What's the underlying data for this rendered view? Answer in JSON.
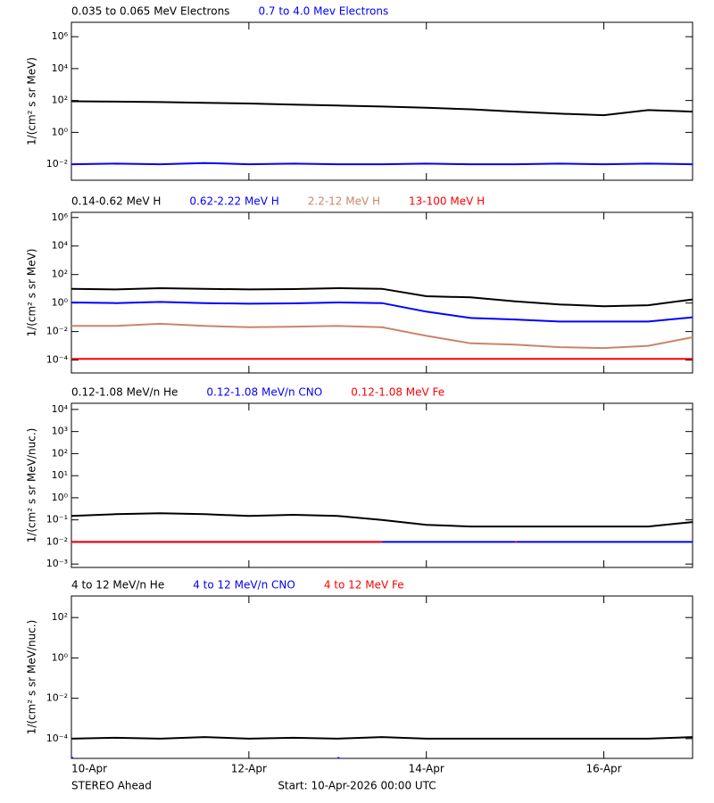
{
  "chart_data": [
    {
      "type": "line",
      "ylabel": "1/(cm² s sr MeV)",
      "ylog": true,
      "x": [
        0,
        0.5,
        1,
        1.5,
        2,
        2.5,
        3,
        3.5,
        4,
        4.5,
        5,
        5.5,
        6,
        6.5,
        7
      ],
      "xlim": [
        0,
        7
      ],
      "xticks": [
        0,
        2,
        4,
        6
      ],
      "ylim": [
        0.001,
        8000000
      ],
      "yticks": [
        {
          "value": 0.01,
          "label": "10⁻²"
        },
        {
          "value": 1,
          "label": "10⁰"
        },
        {
          "value": 100,
          "label": "10²"
        },
        {
          "value": 10000,
          "label": "10⁴"
        },
        {
          "value": 1000000,
          "label": "10⁶"
        }
      ],
      "series": [
        {
          "name": "0.035 to 0.065 MeV Electrons",
          "color": "#000000",
          "values": [
            90,
            85,
            80,
            72,
            65,
            55,
            48,
            42,
            35,
            28,
            20,
            15,
            12,
            25,
            20
          ]
        },
        {
          "name": "0.7 to 4.0 Mev Electrons",
          "color": "#0000ff",
          "values": [
            0.01,
            0.011,
            0.01,
            0.012,
            0.01,
            0.011,
            0.01,
            0.01,
            0.011,
            0.01,
            0.01,
            0.011,
            0.01,
            0.011,
            0.01
          ]
        }
      ]
    },
    {
      "type": "line",
      "ylabel": "1/(cm² s sr MeV)",
      "ylog": true,
      "x": [
        0,
        0.5,
        1,
        1.5,
        2,
        2.5,
        3,
        3.5,
        4,
        4.5,
        5,
        5.5,
        6,
        6.5,
        7
      ],
      "xlim": [
        0,
        7
      ],
      "xticks": [
        0,
        2,
        4,
        6
      ],
      "ylim": [
        1.25e-05,
        2300000
      ],
      "yticks": [
        {
          "value": 0.0001,
          "label": "10⁻⁴"
        },
        {
          "value": 0.01,
          "label": "10⁻²"
        },
        {
          "value": 1,
          "label": "10⁰"
        },
        {
          "value": 100,
          "label": "10²"
        },
        {
          "value": 10000,
          "label": "10⁴"
        },
        {
          "value": 1000000,
          "label": "10⁶"
        }
      ],
      "series": [
        {
          "name": "0.14-0.62 MeV H",
          "color": "#000000",
          "values": [
            10,
            9,
            11,
            10,
            9,
            9.5,
            11,
            10,
            3,
            2.5,
            1.3,
            0.8,
            0.6,
            0.7,
            1.8
          ]
        },
        {
          "name": "0.62-2.22 MeV H",
          "color": "#0000ff",
          "values": [
            1.1,
            1,
            1.2,
            1,
            0.9,
            0.95,
            1.1,
            1,
            0.25,
            0.09,
            0.07,
            0.05,
            0.05,
            0.05,
            0.1
          ]
        },
        {
          "name": "2.2-12 MeV H",
          "color": "#c8866a",
          "values": [
            0.025,
            0.025,
            0.035,
            0.025,
            0.02,
            0.022,
            0.025,
            0.02,
            0.005,
            0.0015,
            0.0012,
            0.0008,
            0.0007,
            0.001,
            0.004
          ]
        },
        {
          "name": "13-100 MeV H",
          "color": "#ff0000",
          "values": [
            0.00012,
            0.00012,
            0.00012,
            0.00012,
            0.00012,
            0.00012,
            0.00012,
            0.00012,
            0.00012,
            0.00012,
            0.00012,
            0.00012,
            0.00012,
            0.00012,
            0.00012
          ]
        }
      ]
    },
    {
      "type": "line",
      "ylabel": "1/(cm² s sr MeV/nuc.)",
      "ylog": true,
      "x": [
        0,
        0.5,
        1,
        1.5,
        2,
        2.5,
        3,
        3.5,
        4,
        4.5,
        5,
        5.5,
        6,
        6.5,
        7
      ],
      "xlim": [
        0,
        7
      ],
      "xticks": [
        0,
        2,
        4,
        6
      ],
      "ylim": [
        0.0007,
        19000
      ],
      "yticks": [
        {
          "value": 0.001,
          "label": "10⁻³"
        },
        {
          "value": 0.01,
          "label": "10⁻²"
        },
        {
          "value": 0.1,
          "label": "10⁻¹"
        },
        {
          "value": 1,
          "label": "10⁰"
        },
        {
          "value": 10,
          "label": "10¹"
        },
        {
          "value": 100,
          "label": "10²"
        },
        {
          "value": 1000,
          "label": "10³"
        },
        {
          "value": 10000,
          "label": "10⁴"
        }
      ],
      "series": [
        {
          "name": "0.12-1.08 MeV/n He",
          "color": "#000000",
          "values": [
            0.15,
            0.18,
            0.2,
            0.18,
            0.15,
            0.17,
            0.15,
            0.1,
            0.06,
            0.05,
            0.05,
            0.05,
            0.05,
            0.05,
            0.08
          ]
        },
        {
          "name": "0.12-1.08 MeV/n CNO",
          "color": "#0000ff",
          "values": [
            0.01,
            0.01,
            0.01,
            0.01,
            0.01,
            0.01,
            0.01,
            0.01,
            0.01,
            0.01,
            0.01,
            0.01,
            0.01,
            0.01,
            0.01
          ]
        },
        {
          "name": "0.12-1.08 MeV Fe",
          "color": "#ff0000",
          "values": [
            0.01,
            0.01,
            0.01,
            0.01,
            0.01,
            0.01,
            0.01,
            0.01,
            null,
            null,
            0.01,
            null,
            null,
            null,
            null
          ]
        }
      ]
    },
    {
      "type": "line",
      "ylabel": "1/(cm² s sr MeV/nuc.)",
      "ylog": true,
      "x": [
        0,
        0.5,
        1,
        1.5,
        2,
        2.5,
        3,
        3.5,
        4,
        4.5,
        5,
        5.5,
        6,
        6.5,
        7
      ],
      "xlim": [
        0,
        7
      ],
      "xticks": [
        {
          "value": 0,
          "label": "10-Apr"
        },
        {
          "value": 2,
          "label": "12-Apr"
        },
        {
          "value": 4,
          "label": "14-Apr"
        },
        {
          "value": 6,
          "label": "16-Apr"
        }
      ],
      "ylim": [
        1.05e-05,
        1170
      ],
      "yticks": [
        {
          "value": 0.0001,
          "label": "10⁻⁴"
        },
        {
          "value": 0.01,
          "label": "10⁻²"
        },
        {
          "value": 1,
          "label": "10⁰"
        },
        {
          "value": 100,
          "label": "10²"
        }
      ],
      "series": [
        {
          "name": "4 to 12 MeV/n He",
          "color": "#000000",
          "values": [
            0.0001,
            0.00011,
            0.0001,
            0.00012,
            0.0001,
            0.00011,
            0.0001,
            0.00012,
            0.0001,
            0.0001,
            0.0001,
            0.0001,
            0.0001,
            0.0001,
            0.00012
          ]
        },
        {
          "name": "4 to 12 MeV/n CNO",
          "color": "#0000ff",
          "values": [
            1.1e-05,
            null,
            null,
            null,
            null,
            null,
            1.1e-05,
            null,
            null,
            null,
            null,
            null,
            null,
            null,
            null
          ]
        },
        {
          "name": "4 to 12 MeV Fe",
          "color": "#ff0000",
          "values": [
            null,
            null,
            null,
            null,
            null,
            null,
            null,
            null,
            null,
            null,
            null,
            null,
            null,
            null,
            null
          ]
        }
      ]
    }
  ],
  "footer": {
    "spacecraft": "STEREO Ahead",
    "start": "Start: 10-Apr-2026 00:00 UTC"
  }
}
